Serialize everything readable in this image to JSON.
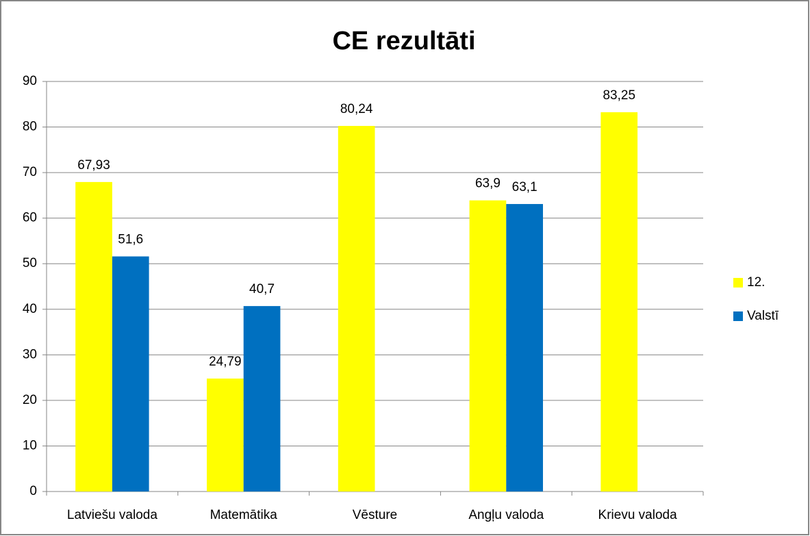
{
  "chart_data": {
    "type": "bar",
    "title": "CE rezultāti",
    "categories": [
      "Latviešu valoda",
      "Matemātika",
      "Vēsture",
      "Angļu valoda",
      "Krievu valoda"
    ],
    "series": [
      {
        "name": "12.",
        "color": "#ffff00",
        "values": [
          67.93,
          24.79,
          80.24,
          63.9,
          83.25
        ],
        "value_labels": [
          "67,93",
          "24,79",
          "80,24",
          "63,9",
          "83,25"
        ]
      },
      {
        "name": "Valstī",
        "color": "#0070c0",
        "values": [
          51.6,
          40.7,
          null,
          63.1,
          null
        ],
        "value_labels": [
          "51,6",
          "40,7",
          null,
          "63,1",
          null
        ]
      }
    ],
    "ylim": [
      0,
      90
    ],
    "yticks": [
      0,
      10,
      20,
      30,
      40,
      50,
      60,
      70,
      80,
      90
    ],
    "grid": true,
    "legend": "right"
  }
}
